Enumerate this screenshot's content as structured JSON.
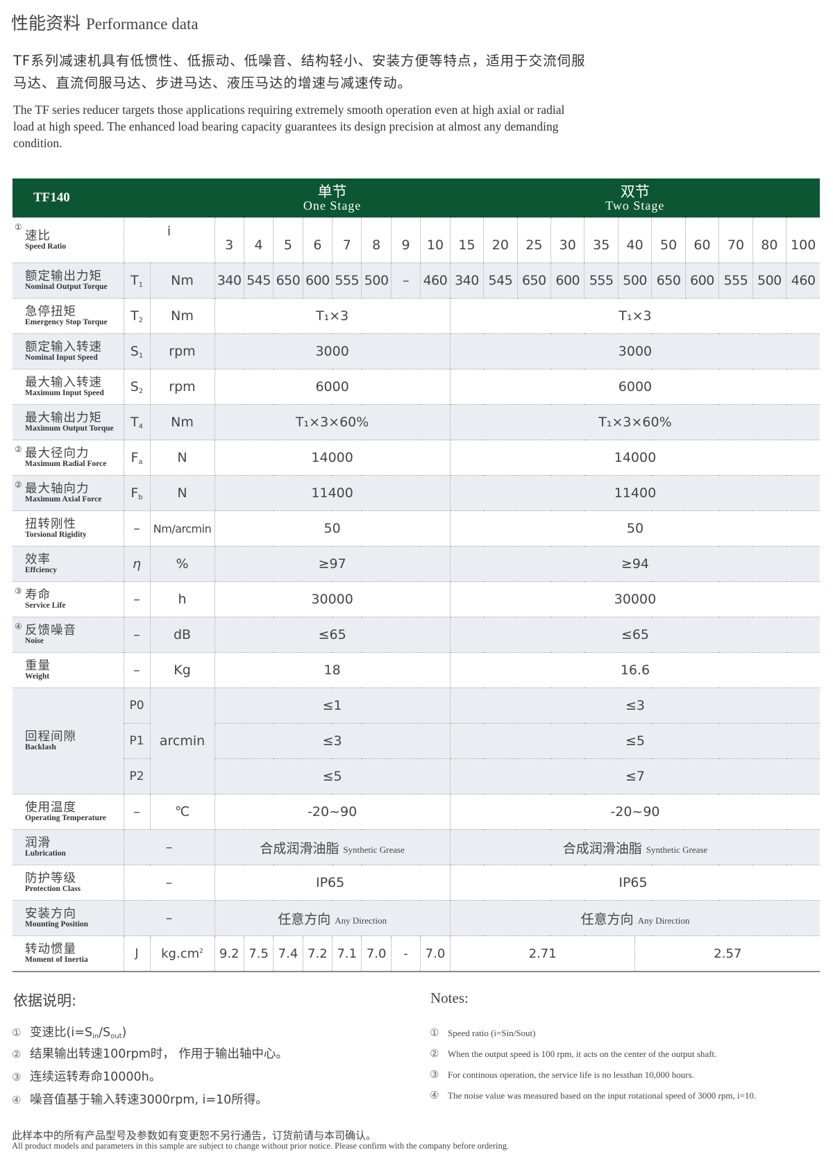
{
  "header": {
    "title_cn": "性能资料",
    "title_en": "Performance data"
  },
  "intro": {
    "cn": "TF系列减速机具有低惯性、低振动、低噪音、结构轻小、安装方便等特点，适用于交流伺服马达、直流伺服马达、步进马达、液压马达的增速与减速传动。",
    "en": "The TF series reducer targets those applications requiring extremely smooth operation even at high axial or radial load at high speed. The enhanced load bearing capacity guarantees its design precision at almost any demanding condition."
  },
  "colors": {
    "header_bg": "#0d5634",
    "row_shade": "#eaeef3"
  },
  "table": {
    "model": "TF140",
    "one_stage": {
      "cn": "单节",
      "en": "One Stage"
    },
    "two_stage": {
      "cn": "双节",
      "en": "Two Stage"
    },
    "speed_ratio": {
      "mark": "①",
      "cn": "速比",
      "en": "Speed Ratio",
      "symbol": "i",
      "one": [
        "3",
        "4",
        "5",
        "6",
        "7",
        "8",
        "9",
        "10"
      ],
      "two": [
        "15",
        "20",
        "25",
        "30",
        "35",
        "40",
        "50",
        "60",
        "70",
        "80",
        "100"
      ]
    },
    "nominal_torque": {
      "cn": "额定输出力矩",
      "en": "Nominal Output Torque",
      "symbol": "T",
      "sub": "1",
      "unit": "Nm",
      "one": [
        "340",
        "545",
        "650",
        "600",
        "555",
        "500",
        "–",
        "460"
      ],
      "two": [
        "340",
        "545",
        "650",
        "600",
        "555",
        "500",
        "650",
        "600",
        "555",
        "500",
        "460"
      ]
    },
    "rows": [
      {
        "cn": "急停扭矩",
        "en": "Emergency Stop Torque",
        "symbol": "T",
        "sub": "2",
        "unit": "Nm",
        "one": "T₁×3",
        "two": "T₁×3"
      },
      {
        "cn": "额定输入转速",
        "en": "Nominal Input Speed",
        "symbol": "S",
        "sub": "1",
        "unit": "rpm",
        "one": "3000",
        "two": "3000"
      },
      {
        "cn": "最大输入转速",
        "en": "Maximum Input Speed",
        "symbol": "S",
        "sub": "2",
        "unit": "rpm",
        "one": "6000",
        "two": "6000"
      },
      {
        "cn": "最大输出力矩",
        "en": "Maximum Output Torque",
        "symbol": "T",
        "sub": "4",
        "unit": "Nm",
        "one": "T₁×3×60%",
        "two": "T₁×3×60%"
      },
      {
        "mark": "②",
        "cn": "最大径向力",
        "en": "Maximum Radial Force",
        "symbol": "F",
        "sub": "a",
        "unit": "N",
        "one": "14000",
        "two": "14000"
      },
      {
        "mark": "②",
        "cn": "最大轴向力",
        "en": "Maximum Axial Force",
        "symbol": "F",
        "sub": "b",
        "unit": "N",
        "one": "11400",
        "two": "11400"
      },
      {
        "cn": "扭转刚性",
        "en": "Torsional Rigidity",
        "symbol": "–",
        "unit": "Nm/arcmin",
        "one": "50",
        "two": "50"
      },
      {
        "cn": "效率",
        "en": "Effciency",
        "symbol": "η",
        "unit": "%",
        "one": "≥97",
        "two": "≥94"
      },
      {
        "mark": "③",
        "cn": "寿命",
        "en": "Service Life",
        "symbol": "–",
        "unit": "h",
        "one": "30000",
        "two": "30000"
      },
      {
        "mark": "④",
        "cn": "反馈噪音",
        "en": "Noise",
        "symbol": "–",
        "unit": "dB",
        "one": "≤65",
        "two": "≤65"
      },
      {
        "cn": "重量",
        "en": "Weight",
        "symbol": "–",
        "unit": "Kg",
        "one": "18",
        "two": "16.6"
      }
    ],
    "backlash": {
      "cn": "回程间隙",
      "en": "Backlash",
      "unit": "arcmin",
      "levels": [
        {
          "symbol": "P0",
          "one": "≤1",
          "two": "≤3"
        },
        {
          "symbol": "P1",
          "one": "≤3",
          "two": "≤5"
        },
        {
          "symbol": "P2",
          "one": "≤5",
          "two": "≤7"
        }
      ]
    },
    "temperature": {
      "cn": "使用温度",
      "en": "Operating Temperature",
      "symbol": "–",
      "unit": "℃",
      "one": "-20~90",
      "two": "-20~90"
    },
    "merged_rows": [
      {
        "cn": "润滑",
        "en": "Lubrication",
        "symbol": "–",
        "one_cn": "合成润滑油脂",
        "one_en": "Synthetic Grease",
        "two_cn": "合成润滑油脂",
        "two_en": "Synthetic Grease"
      },
      {
        "cn": "防护等级",
        "en": "Protection Class",
        "symbol": "–",
        "one_cn": "IP65",
        "one_en": "",
        "two_cn": "IP65",
        "two_en": ""
      },
      {
        "cn": "安装方向",
        "en": "Mounting Position",
        "symbol": "–",
        "one_cn": "任意方向",
        "one_en": "Any Direction",
        "two_cn": "任意方向",
        "two_en": "Any Direction"
      }
    ],
    "inertia": {
      "cn": "转动惯量",
      "en": "Moment of Inertia",
      "symbol": "J",
      "unit": "kg.cm",
      "unit_sup": "2",
      "one": [
        "9.2",
        "7.5",
        "7.4",
        "7.2",
        "7.1",
        "7.0",
        "-",
        "7.0"
      ],
      "two": [
        "2.71",
        "2.57"
      ]
    }
  },
  "notes": {
    "cn_title": "依据说明:",
    "en_title": "Notes:",
    "cn": [
      {
        "mark": "①",
        "text": "变速比(i=S",
        "sub1": "in",
        "mid": "/S",
        "sub2": "out",
        "end": ")"
      },
      {
        "mark": "②",
        "text": "结果输出转速100rpm时， 作用于输出轴中心。"
      },
      {
        "mark": "③",
        "text": "连续运转寿命10000h。"
      },
      {
        "mark": "④",
        "text": "噪音值基于输入转速3000rpm, i=10所得。"
      }
    ],
    "en": [
      {
        "mark": "①",
        "text": "Speed ratio (i=Sin/Sout)"
      },
      {
        "mark": "②",
        "text": "When the output speed is 100 rpm, it acts on the center of the output shaft."
      },
      {
        "mark": "③",
        "text": "For continous operation, the service life is no lessthan 10,000 hours."
      },
      {
        "mark": "④",
        "text": "The noise value was measured based on the input rotational speed of 3000 rpm, i=10."
      }
    ]
  },
  "footer": {
    "cn": "此样本中的所有产品型号及参数如有变更恕不另行通告，订货前请与本司确认。",
    "en": "All product models and parameters in this sample are subject to change without prior notice. Please confirm with the company before ordering."
  }
}
